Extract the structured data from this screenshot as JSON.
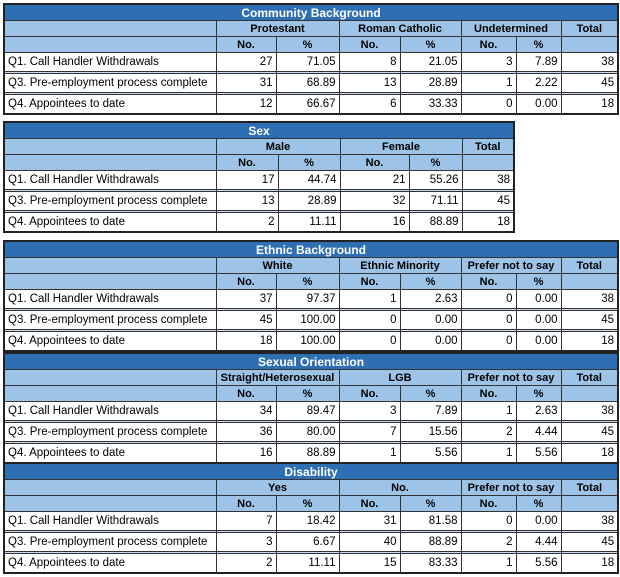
{
  "tables": [
    {
      "title": "Community Background",
      "groups": [
        "Protestant",
        "Roman Catholic",
        "Undetermined"
      ],
      "total_label": "Total",
      "sub": [
        "No.",
        "%"
      ],
      "rows": [
        {
          "label": "Q1. Call Handler Withdrawals",
          "values": [
            "27",
            "71.05",
            "8",
            "21.05",
            "3",
            "7.89"
          ],
          "total": "38"
        },
        {
          "label": "Q3. Pre-employment process complete",
          "values": [
            "31",
            "68.89",
            "13",
            "28.89",
            "1",
            "2.22"
          ],
          "total": "45"
        },
        {
          "label": "Q4. Appointees to date",
          "values": [
            "12",
            "66.67",
            "6",
            "33.33",
            "0",
            "0.00"
          ],
          "total": "18"
        }
      ]
    },
    {
      "title": "Sex",
      "groups": [
        "Male",
        "Female"
      ],
      "total_label": "Total",
      "sub": [
        "No.",
        "%"
      ],
      "rows": [
        {
          "label": "Q1. Call Handler Withdrawals",
          "values": [
            "17",
            "44.74",
            "21",
            "55.26"
          ],
          "total": "38"
        },
        {
          "label": "Q3. Pre-employment process complete",
          "values": [
            "13",
            "28.89",
            "32",
            "71.11"
          ],
          "total": "45"
        },
        {
          "label": "Q4. Appointees to date",
          "values": [
            "2",
            "11.11",
            "16",
            "88.89"
          ],
          "total": "18"
        }
      ]
    },
    {
      "title": "Ethnic Background",
      "groups": [
        "White",
        "Ethnic Minority",
        "Prefer not to say"
      ],
      "total_label": "Total",
      "sub": [
        "No.",
        "%"
      ],
      "rows": [
        {
          "label": "Q1. Call Handler Withdrawals",
          "values": [
            "37",
            "97.37",
            "1",
            "2.63",
            "0",
            "0.00"
          ],
          "total": "38"
        },
        {
          "label": "Q3. Pre-employment process complete",
          "values": [
            "45",
            "100.00",
            "0",
            "0.00",
            "0",
            "0.00"
          ],
          "total": "45"
        },
        {
          "label": "Q4. Appointees to date",
          "values": [
            "18",
            "100.00",
            "0",
            "0.00",
            "0",
            "0.00"
          ],
          "total": "18"
        }
      ]
    },
    {
      "title": "Sexual Orientation",
      "groups": [
        "Straight/Heterosexual",
        "LGB",
        "Prefer not to say"
      ],
      "total_label": "Total",
      "sub": [
        "No.",
        "%"
      ],
      "rows": [
        {
          "label": "Q1. Call Handler Withdrawals",
          "values": [
            "34",
            "89.47",
            "3",
            "7.89",
            "1",
            "2.63"
          ],
          "total": "38"
        },
        {
          "label": "Q3. Pre-employment process complete",
          "values": [
            "36",
            "80.00",
            "7",
            "15.56",
            "2",
            "4.44"
          ],
          "total": "45"
        },
        {
          "label": "Q4. Appointees to date",
          "values": [
            "16",
            "88.89",
            "1",
            "5.56",
            "1",
            "5.56"
          ],
          "total": "18"
        }
      ]
    },
    {
      "title": "Disability",
      "groups": [
        "Yes",
        "No.",
        "Prefer not to say"
      ],
      "total_label": "Total",
      "sub": [
        "No.",
        "%"
      ],
      "rows": [
        {
          "label": "Q1. Call Handler Withdrawals",
          "values": [
            "7",
            "18.42",
            "31",
            "81.58",
            "0",
            "0.00"
          ],
          "total": "38"
        },
        {
          "label": "Q3. Pre-employment process complete",
          "values": [
            "3",
            "6.67",
            "40",
            "88.89",
            "2",
            "4.44"
          ],
          "total": "45"
        },
        {
          "label": "Q4. Appointees to date",
          "values": [
            "2",
            "11.11",
            "15",
            "83.33",
            "1",
            "5.56"
          ],
          "total": "18"
        }
      ]
    }
  ]
}
